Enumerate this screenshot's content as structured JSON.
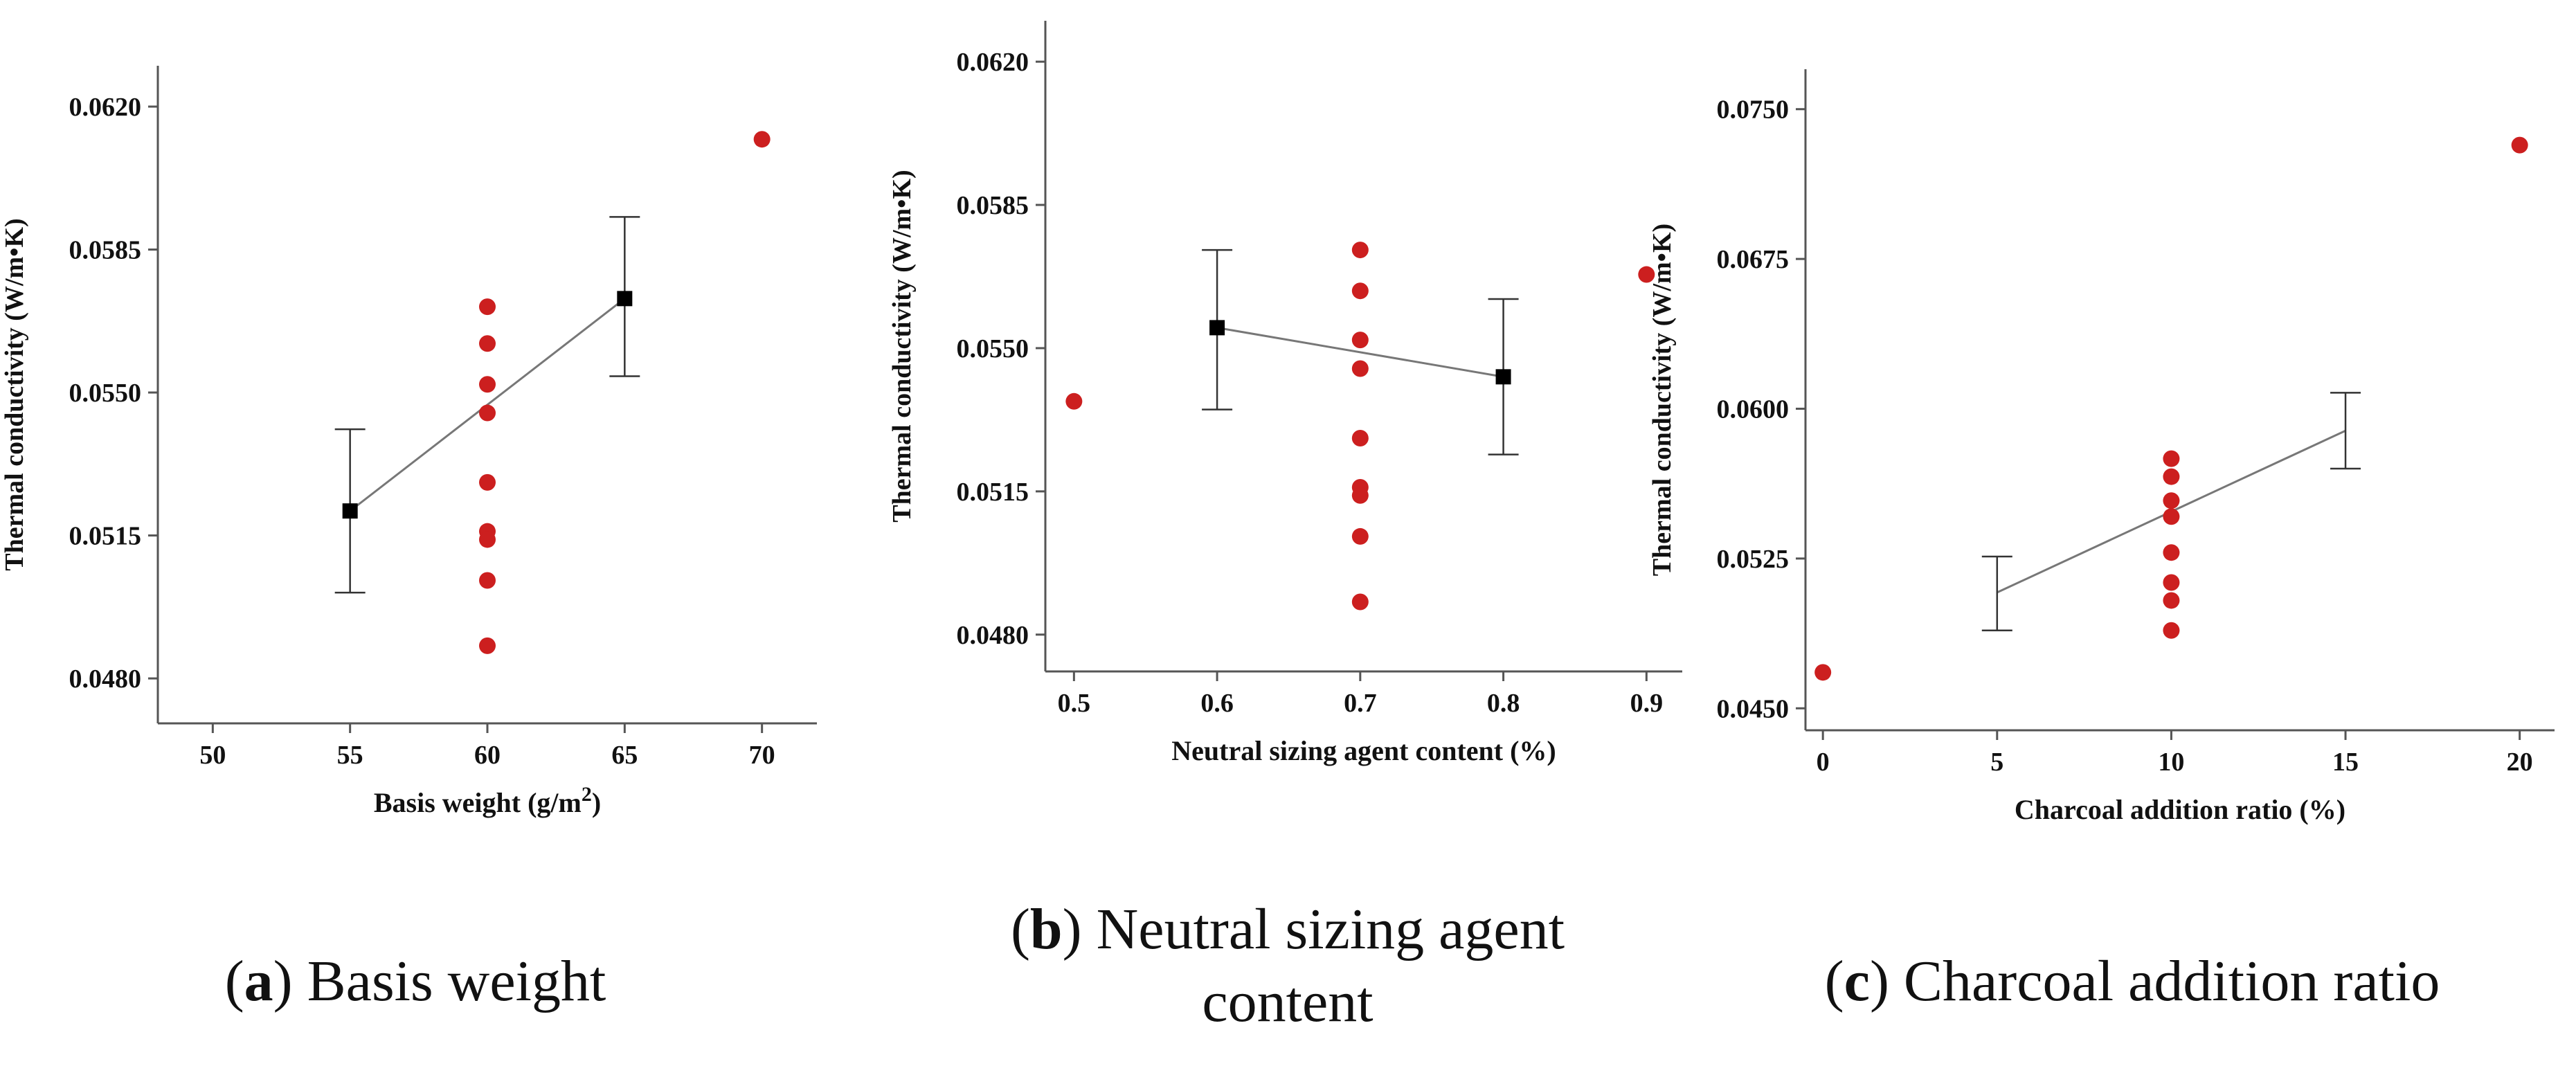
{
  "captions": [
    {
      "letter": "a",
      "text": "Basis weight"
    },
    {
      "letter": "b",
      "text": "Neutral sizing agent",
      "text2": "content"
    },
    {
      "letter": "c",
      "text": "Charcoal addition ratio"
    }
  ],
  "colors": {
    "points": "#cc1f1f",
    "means": "#000000",
    "line": "#777777",
    "axis": "#555555"
  },
  "chart_data": [
    {
      "type": "scatter",
      "xlabel": "Basis weight  (g/m",
      "xlabel_sup": "2",
      "xlabel_end": ")",
      "ylabel": "Thermal conductivity (W/m•K)",
      "xlim": [
        48,
        72
      ],
      "ylim": [
        0.0469,
        0.063
      ],
      "xticks": [
        50,
        55,
        60,
        65,
        70
      ],
      "yticks": [
        "0.0480",
        "0.0515",
        "0.0550",
        "0.0585",
        "0.0620"
      ],
      "points": [
        {
          "x": 60,
          "y": 0.0571
        },
        {
          "x": 60,
          "y": 0.0562
        },
        {
          "x": 60,
          "y": 0.0552
        },
        {
          "x": 60,
          "y": 0.0545
        },
        {
          "x": 60,
          "y": 0.0528
        },
        {
          "x": 60,
          "y": 0.0516
        },
        {
          "x": 60,
          "y": 0.0514
        },
        {
          "x": 60,
          "y": 0.0504
        },
        {
          "x": 60,
          "y": 0.0488
        },
        {
          "x": 70,
          "y": 0.0612
        }
      ],
      "means": [
        {
          "x": 55,
          "y": 0.0521,
          "lo": 0.0501,
          "hi": 0.0541
        },
        {
          "x": 65,
          "y": 0.0573,
          "lo": 0.0554,
          "hi": 0.0593
        }
      ]
    },
    {
      "type": "scatter",
      "xlabel": "Neutral sizing agent content (%)",
      "ylabel": "Thermal conductivity (W/m•K)",
      "xlim": [
        0.48,
        0.925
      ],
      "ylim": [
        0.0471,
        0.063
      ],
      "xticks": [
        "0.5",
        "0.6",
        "0.7",
        "0.8",
        "0.9"
      ],
      "yticks": [
        "0.0480",
        "0.0515",
        "0.0550",
        "0.0585",
        "0.0620"
      ],
      "points": [
        {
          "x": 0.5,
          "y": 0.0537
        },
        {
          "x": 0.7,
          "y": 0.0574
        },
        {
          "x": 0.7,
          "y": 0.0564
        },
        {
          "x": 0.7,
          "y": 0.0552
        },
        {
          "x": 0.7,
          "y": 0.0545
        },
        {
          "x": 0.7,
          "y": 0.0528
        },
        {
          "x": 0.7,
          "y": 0.0516
        },
        {
          "x": 0.7,
          "y": 0.0514
        },
        {
          "x": 0.7,
          "y": 0.0504
        },
        {
          "x": 0.7,
          "y": 0.0488
        },
        {
          "x": 0.9,
          "y": 0.0568
        }
      ],
      "means": [
        {
          "x": 0.6,
          "y": 0.0555,
          "lo": 0.0535,
          "hi": 0.0574
        },
        {
          "x": 0.8,
          "y": 0.0543,
          "lo": 0.0524,
          "hi": 0.0562
        }
      ]
    },
    {
      "type": "scatter",
      "xlabel": "Charcoal  addition ratio (%)",
      "ylabel": "Thermal conductivity (W/m•K)",
      "xlim": [
        -0.5,
        21
      ],
      "ylim": [
        0.0439,
        0.077
      ],
      "xticks": [
        0,
        5,
        10,
        15,
        20
      ],
      "yticks": [
        "0.0450",
        "0.0525",
        "0.0600",
        "0.0675",
        "0.0750"
      ],
      "points": [
        {
          "x": 0,
          "y": 0.0468
        },
        {
          "x": 10,
          "y": 0.0575
        },
        {
          "x": 10,
          "y": 0.0566
        },
        {
          "x": 10,
          "y": 0.0554
        },
        {
          "x": 10,
          "y": 0.0546
        },
        {
          "x": 10,
          "y": 0.0528
        },
        {
          "x": 10,
          "y": 0.0513
        },
        {
          "x": 10,
          "y": 0.0504
        },
        {
          "x": 10,
          "y": 0.0489
        },
        {
          "x": 20,
          "y": 0.0732
        }
      ],
      "means": [
        {
          "x": 5,
          "y": 0.0508,
          "lo": 0.0489,
          "hi": 0.0526
        },
        {
          "x": 15,
          "y": 0.0589,
          "lo": 0.057,
          "hi": 0.0608
        }
      ]
    }
  ]
}
